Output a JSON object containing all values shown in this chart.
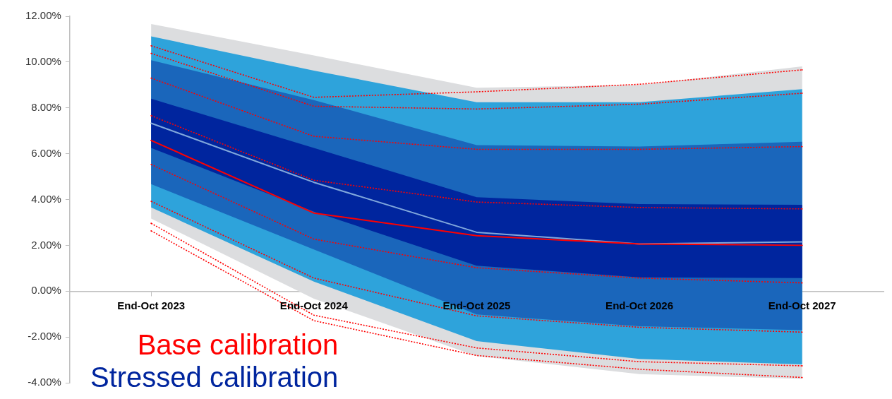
{
  "chart_data": {
    "type": "area",
    "categories": [
      "End-Oct 2023",
      "End-Oct 2024",
      "End-Oct 2025",
      "End-Oct 2026",
      "End-Oct 2027"
    ],
    "ylim": [
      -4,
      12
    ],
    "yticks": [
      {
        "value": -4,
        "label": "-4.00%"
      },
      {
        "value": -2,
        "label": "-2.00%"
      },
      {
        "value": 0,
        "label": "0.00%"
      },
      {
        "value": 2,
        "label": "2.00%"
      },
      {
        "value": 4,
        "label": "4.00%"
      },
      {
        "value": 6,
        "label": "6.00%"
      },
      {
        "value": 8,
        "label": "8.00%"
      },
      {
        "value": 10,
        "label": "10.00%"
      },
      {
        "value": 12,
        "label": "12.00%"
      }
    ],
    "legend": "bottom left",
    "series": [
      {
        "color": "#dcdddf",
        "values": [
          null,
          null,
          null,
          null,
          null
        ],
        "upper": [
          11.66,
          10.29,
          8.88,
          9.0,
          9.81
        ],
        "lower": [
          3.17,
          -0.33,
          -2.84,
          -3.62,
          -3.83
        ]
      },
      {
        "color": "#2ea3db",
        "values": [
          null,
          null,
          null,
          null,
          null
        ],
        "upper": [
          11.12,
          9.63,
          8.25,
          8.25,
          8.82
        ],
        "lower": [
          3.65,
          0.42,
          -2.18,
          -2.96,
          -3.2
        ]
      },
      {
        "color": "#1a66bb",
        "values": [
          null,
          null,
          null,
          null,
          null
        ],
        "upper": [
          10.08,
          8.34,
          6.37,
          6.31,
          6.52
        ],
        "lower": [
          4.67,
          1.82,
          -1.02,
          -1.53,
          -1.7
        ]
      },
      {
        "color": "#00259e",
        "name": "Stressed calibration",
        "values": [
          null,
          null,
          null,
          null,
          null
        ],
        "upper": [
          8.4,
          6.25,
          4.1,
          3.8,
          3.77
        ],
        "lower": [
          6.25,
          3.47,
          1.11,
          0.6,
          0.57
        ]
      },
      {
        "type": "line",
        "color": "#80a8dc",
        "values": [
          7.33,
          4.75,
          2.57,
          2.06,
          2.15
        ]
      },
      {
        "type": "line",
        "color": "#ff0000",
        "line_style": "dotted",
        "values": [
          10.71,
          8.46,
          8.7,
          9.03,
          9.66
        ]
      },
      {
        "type": "line",
        "color": "#ff0000",
        "line_style": "dotted",
        "values": [
          10.38,
          8.07,
          7.95,
          8.16,
          8.64
        ]
      },
      {
        "type": "line",
        "color": "#ff0000",
        "line_style": "dotted",
        "values": [
          9.3,
          6.76,
          6.19,
          6.19,
          6.31
        ]
      },
      {
        "type": "line",
        "color": "#ff0000",
        "line_style": "dotted",
        "values": [
          7.66,
          4.84,
          3.89,
          3.65,
          3.59
        ]
      },
      {
        "type": "line",
        "color": "#ff0000",
        "line_style": "dotted",
        "values": [
          5.53,
          2.27,
          1.02,
          0.57,
          0.36
        ]
      },
      {
        "type": "line",
        "color": "#ff0000",
        "line_style": "dotted",
        "values": [
          3.92,
          0.57,
          -1.08,
          -1.58,
          -1.79
        ]
      },
      {
        "type": "line",
        "color": "#ff0000",
        "line_style": "dotted",
        "values": [
          2.96,
          -1.05,
          -2.48,
          -3.08,
          -3.26
        ]
      },
      {
        "type": "line",
        "color": "#ff0000",
        "line_style": "dotted",
        "values": [
          2.63,
          -1.29,
          -2.81,
          -3.41,
          -3.77
        ]
      },
      {
        "type": "line",
        "color": "#ff0000",
        "name": "Base calibration",
        "values": [
          6.58,
          3.41,
          2.42,
          2.06,
          2.0
        ]
      }
    ]
  }
}
